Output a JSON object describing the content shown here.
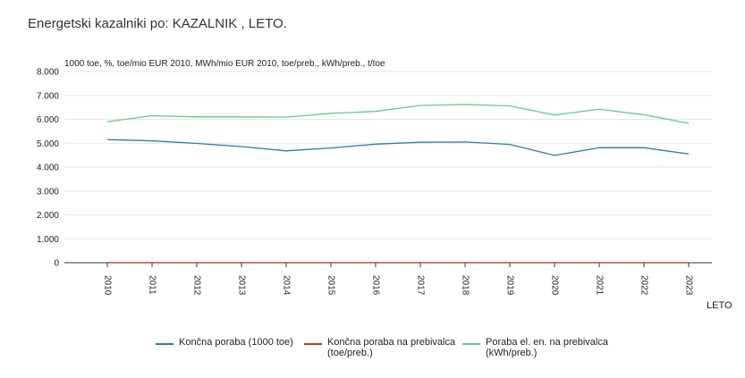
{
  "title": "Energetski kazalniki po: KAZALNIK ,  LETO.",
  "chart_data": {
    "type": "line",
    "unit_label": "1000 toe, %, toe/mio EUR 2010, MWh/mio EUR 2010, toe/preb., kWh/preb., t/toe",
    "xlabel": "LETO",
    "x": [
      "2010",
      "2011",
      "2012",
      "2013",
      "2014",
      "2015",
      "2016",
      "2017",
      "2018",
      "2019",
      "2020",
      "2021",
      "2022",
      "2023"
    ],
    "ylim": [
      0,
      8000
    ],
    "yticks": [
      0,
      1000,
      2000,
      3000,
      4000,
      5000,
      6000,
      7000,
      8000
    ],
    "ytick_labels": [
      "0",
      "1.000",
      "2.000",
      "3.000",
      "4.000",
      "5.000",
      "6.000",
      "7.000",
      "8.000"
    ],
    "grid": true,
    "legend_position": "bottom",
    "series": [
      {
        "name": "Končna poraba (1000 toe)",
        "color": "#2a7fa8",
        "values": [
          5150,
          5100,
          4990,
          4860,
          4680,
          4800,
          4960,
          5040,
          5050,
          4950,
          4490,
          4810,
          4810,
          4550
        ]
      },
      {
        "name": "Končna poraba na prebivalca (toe/preb.)",
        "color": "#b5451b",
        "values": [
          2.5,
          2.5,
          2.4,
          2.4,
          2.3,
          2.3,
          2.4,
          2.4,
          2.4,
          2.4,
          2.1,
          2.3,
          2.3,
          2.1
        ]
      },
      {
        "name": "Poraba el. en. na prebivalca (kWh/preb.)",
        "color": "#5ccf8a",
        "values": [
          5900,
          6150,
          6100,
          6100,
          6090,
          6250,
          6330,
          6580,
          6620,
          6560,
          6180,
          6420,
          6190,
          5830
        ]
      }
    ]
  }
}
